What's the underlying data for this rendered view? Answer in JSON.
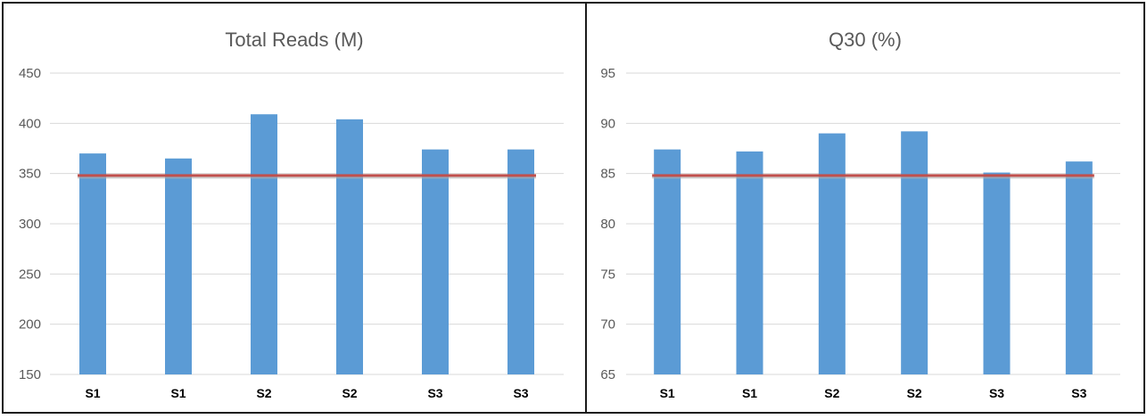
{
  "chart_data": [
    {
      "type": "bar",
      "title": "Total Reads (M)",
      "categories": [
        "S1",
        "S1",
        "S2",
        "S2",
        "S3",
        "S3"
      ],
      "values": [
        370,
        365,
        409,
        404,
        374,
        374
      ],
      "ylim": [
        150,
        450
      ],
      "yticks": [
        150,
        200,
        250,
        300,
        350,
        400,
        450
      ],
      "reference_line": 348,
      "grid": true,
      "bar_color": "#5b9bd5",
      "line_color": "#c0504d"
    },
    {
      "type": "bar",
      "title": "Q30 (%)",
      "categories": [
        "S1",
        "S1",
        "S2",
        "S2",
        "S3",
        "S3"
      ],
      "values": [
        87.4,
        87.2,
        89.0,
        89.2,
        85.1,
        86.2
      ],
      "ylim": [
        65,
        95
      ],
      "yticks": [
        65,
        70,
        75,
        80,
        85,
        90,
        95
      ],
      "reference_line": 84.8,
      "grid": true,
      "bar_color": "#5b9bd5",
      "line_color": "#c0504d"
    }
  ]
}
